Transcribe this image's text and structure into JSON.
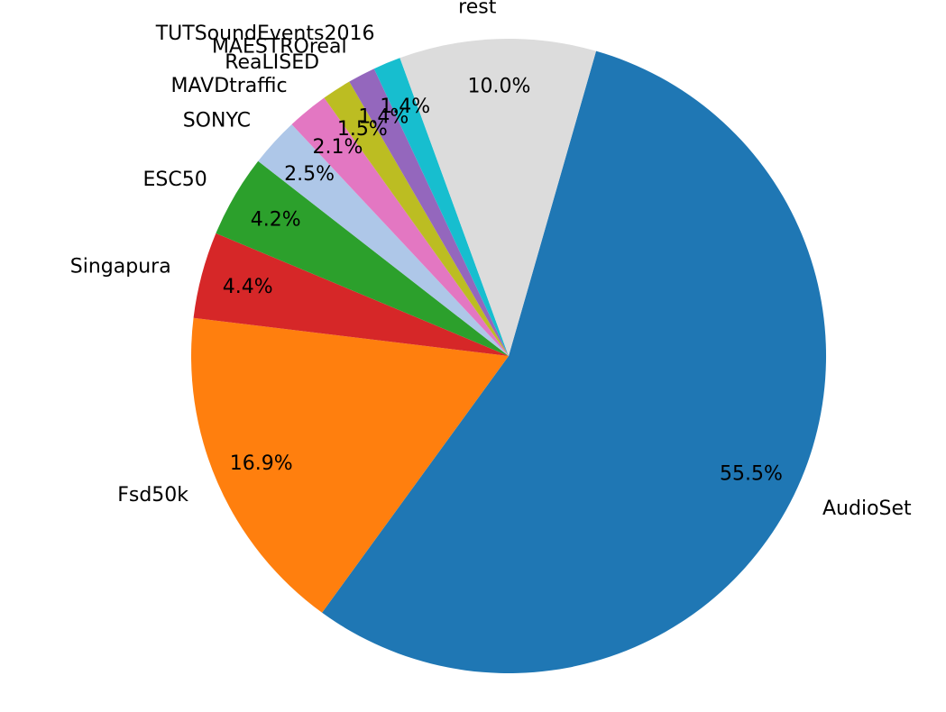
{
  "chart_data": {
    "type": "pie",
    "title": "",
    "slices": [
      {
        "label": "AudioSet",
        "value": 55.5,
        "pct_text": "55.5%",
        "color": "#1f77b4"
      },
      {
        "label": "Fsd50k",
        "value": 16.9,
        "pct_text": "16.9%",
        "color": "#ff7f0e"
      },
      {
        "label": "Singapura",
        "value": 4.4,
        "pct_text": "4.4%",
        "color": "#d62728"
      },
      {
        "label": "ESC50",
        "value": 4.2,
        "pct_text": "4.2%",
        "color": "#2ca02c"
      },
      {
        "label": "SONYC",
        "value": 2.5,
        "pct_text": "2.5%",
        "color": "#aec7e8"
      },
      {
        "label": "MAVDtraffic",
        "value": 2.1,
        "pct_text": "2.1%",
        "color": "#e377c2"
      },
      {
        "label": "ReaLISED",
        "value": 1.5,
        "pct_text": "1.5%",
        "color": "#bcbd22"
      },
      {
        "label": "MAESTROreal",
        "value": 1.4,
        "pct_text": "1.4%",
        "color": "#9467bd"
      },
      {
        "label": "TUTSoundEvents2016",
        "value": 1.4,
        "pct_text": "1.4%",
        "color": "#17becf"
      },
      {
        "label": "rest",
        "value": 10.0,
        "pct_text": "10.0%",
        "color": "#dcdcdc"
      }
    ],
    "start_angle_deg": 74,
    "direction": "clockwise",
    "legend": "none"
  }
}
